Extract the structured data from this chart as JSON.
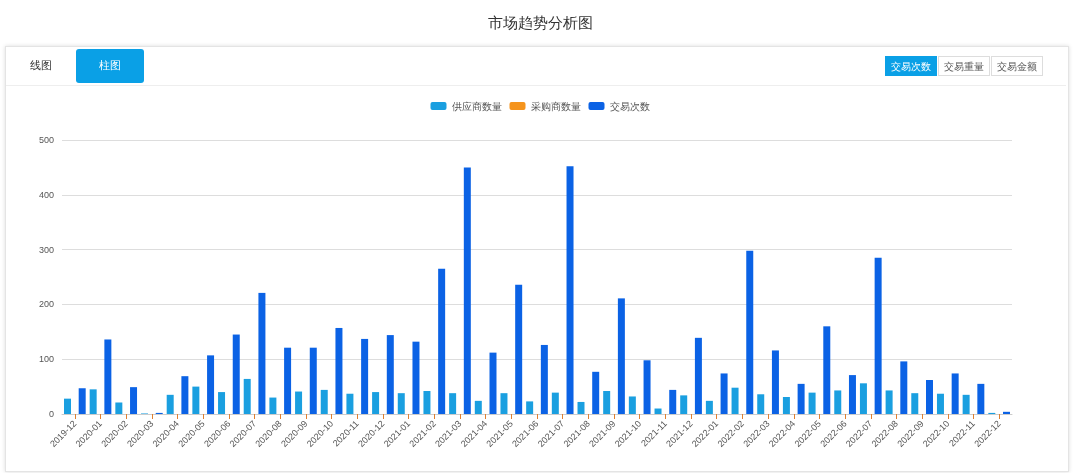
{
  "chart_data": {
    "type": "bar",
    "title": "市场趋势分析图",
    "annotations": [
      "线图",
      "柱图",
      "交易次数",
      "交易重量",
      "交易金额"
    ],
    "categories": [
      "2019-12",
      "2020-01",
      "2020-02",
      "2020-03",
      "2020-04",
      "2020-05",
      "2020-06",
      "2020-07",
      "2020-08",
      "2020-09",
      "2020-10",
      "2020-11",
      "2020-12",
      "2021-01",
      "2021-02",
      "2021-03",
      "2021-04",
      "2021-05",
      "2021-06",
      "2021-07",
      "2021-08",
      "2021-09",
      "2021-10",
      "2021-11",
      "2021-12",
      "2022-01",
      "2022-02",
      "2022-03",
      "2022-04",
      "2022-05",
      "2022-06",
      "2022-07",
      "2022-08",
      "2022-09",
      "2022-10",
      "2022-11",
      "2022-12"
    ],
    "series": [
      {
        "name": "供应商数量",
        "color": "#1a9fe0",
        "values": [
          28,
          45,
          21,
          1,
          35,
          50,
          40,
          64,
          30,
          41,
          44,
          37,
          40,
          38,
          42,
          38,
          24,
          38,
          23,
          39,
          22,
          42,
          32,
          10,
          34,
          24,
          48,
          36,
          31,
          39,
          43,
          56,
          43,
          38,
          37,
          35,
          2
        ]
      },
      {
        "name": "采购商数量",
        "color": "#f5941d",
        "values": [
          0,
          0,
          0,
          0,
          0,
          0,
          0,
          0,
          0,
          0,
          0,
          0,
          0,
          0,
          0,
          0,
          0,
          0,
          0,
          0,
          0,
          0,
          0,
          0,
          0,
          0,
          0,
          0,
          0,
          0,
          0,
          0,
          0,
          0,
          0,
          0,
          0
        ]
      },
      {
        "name": "交易次数",
        "color": "#0b62e5",
        "values": [
          47,
          136,
          49,
          2,
          69,
          107,
          145,
          221,
          121,
          121,
          157,
          137,
          144,
          132,
          265,
          450,
          112,
          236,
          126,
          452,
          77,
          211,
          98,
          44,
          139,
          74,
          298,
          116,
          55,
          160,
          71,
          285,
          96,
          62,
          74,
          55,
          4
        ]
      }
    ],
    "ylim": [
      0,
      500
    ],
    "yticks": [
      0,
      100,
      200,
      300,
      400,
      500
    ],
    "grid": "y",
    "legend": "top"
  }
}
